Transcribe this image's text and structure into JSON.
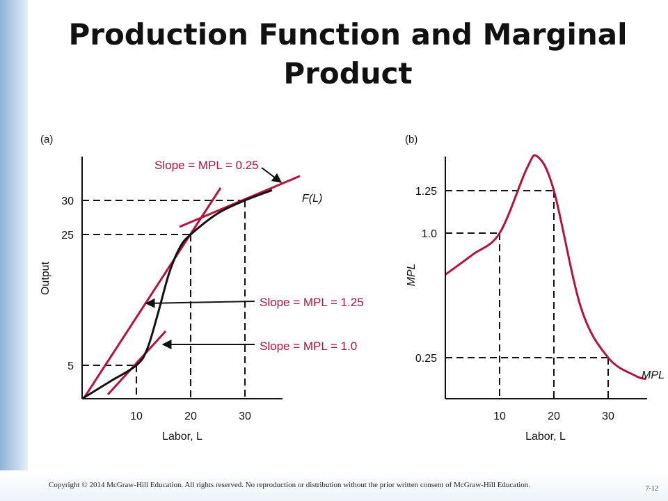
{
  "slide": {
    "title_line1": "Production Function and Marginal",
    "title_line2": "Product",
    "footer": "Copyright © 2014 McGraw-Hill Education. All rights reserved. No reproduction or distribution without the prior written consent of McGraw-Hill Education.",
    "slide_number": "7-12"
  },
  "colors": {
    "curve": "#b5123c",
    "axis": "#111111",
    "dash": "#111111"
  },
  "chart_data": [
    {
      "type": "line",
      "panel_label": "(a)",
      "xlabel": "Labor, L",
      "ylabel": "Output",
      "x_ticks": [
        "10",
        "20",
        "30"
      ],
      "y_ticks": [
        "5",
        "25",
        "30"
      ],
      "series": [
        {
          "name": "F(L)",
          "x": [
            0,
            5,
            10,
            12,
            14,
            16,
            18,
            20,
            25,
            30,
            35
          ],
          "y": [
            0,
            2.5,
            5,
            7.5,
            13,
            19,
            23,
            25,
            28.1,
            30,
            31.5
          ]
        }
      ],
      "reference_points": [
        {
          "x": 10,
          "y": 5
        },
        {
          "x": 20,
          "y": 25
        },
        {
          "x": 30,
          "y": 30
        }
      ],
      "annotations": [
        {
          "text": "Slope = MPL = 0.25",
          "slope": 0.25,
          "at_x": 30
        },
        {
          "text": "Slope = MPL = 1.25",
          "slope": 1.25,
          "at_x": 20
        },
        {
          "text": "Slope = MPL = 1.0",
          "slope": 1.0,
          "at_x": 10
        }
      ],
      "curve_label": "F(L)"
    },
    {
      "type": "line",
      "panel_label": "(b)",
      "xlabel": "Labor, L",
      "ylabel": "MPL",
      "x_ticks": [
        "10",
        "20",
        "30"
      ],
      "y_ticks": [
        "0.25",
        "1.0",
        "1.25"
      ],
      "series": [
        {
          "name": "MPL",
          "x": [
            0,
            5,
            10,
            15,
            17,
            20,
            25,
            30,
            35,
            37
          ],
          "y": [
            0.75,
            0.87,
            1.0,
            1.38,
            1.45,
            1.25,
            0.55,
            0.25,
            0.14,
            0.12
          ]
        }
      ],
      "reference_points": [
        {
          "x": 10,
          "y": 1.0
        },
        {
          "x": 20,
          "y": 1.25
        },
        {
          "x": 30,
          "y": 0.25
        }
      ],
      "curve_label": "MPL"
    }
  ]
}
